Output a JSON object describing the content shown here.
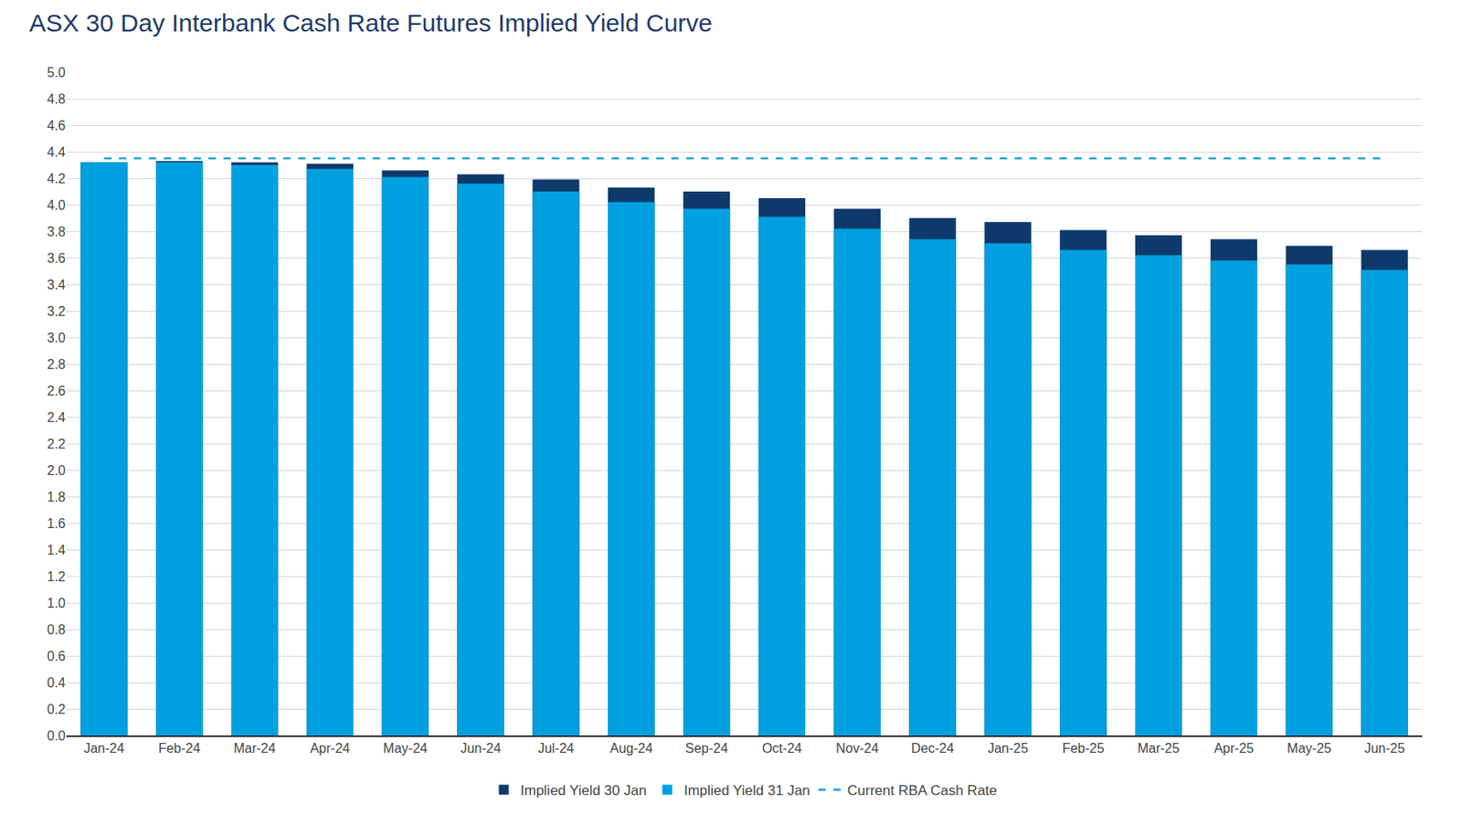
{
  "chart_data": {
    "type": "bar",
    "title": "ASX 30 Day Interbank Cash Rate Futures Implied Yield Curve",
    "categories": [
      "Jan-24",
      "Feb-24",
      "Mar-24",
      "Apr-24",
      "May-24",
      "Jun-24",
      "Jul-24",
      "Aug-24",
      "Sep-24",
      "Oct-24",
      "Nov-24",
      "Dec-24",
      "Jan-25",
      "Feb-25",
      "Mar-25",
      "Apr-25",
      "May-25",
      "Jun-25"
    ],
    "series": [
      {
        "name": "Implied Yield 30 Jan",
        "type": "bar",
        "color": "#0d3a6b",
        "values": [
          4.32,
          4.33,
          4.32,
          4.31,
          4.26,
          4.23,
          4.19,
          4.13,
          4.1,
          4.05,
          3.97,
          3.9,
          3.87,
          3.81,
          3.77,
          3.74,
          3.69,
          3.66
        ]
      },
      {
        "name": "Implied Yield 31 Jan",
        "type": "bar",
        "color": "#009fe0",
        "values": [
          4.32,
          4.32,
          4.3,
          4.27,
          4.21,
          4.16,
          4.1,
          4.02,
          3.97,
          3.91,
          3.82,
          3.74,
          3.71,
          3.66,
          3.62,
          3.58,
          3.55,
          3.51
        ]
      },
      {
        "name": "Current RBA Cash Rate",
        "type": "line",
        "color": "#1ba1e2",
        "line_style": "dashed",
        "values": [
          4.35,
          4.35,
          4.35,
          4.35,
          4.35,
          4.35,
          4.35,
          4.35,
          4.35,
          4.35,
          4.35,
          4.35,
          4.35,
          4.35,
          4.35,
          4.35,
          4.35,
          4.35
        ]
      }
    ],
    "ylim": [
      0,
      5
    ],
    "yticks": [
      {
        "value": 0,
        "label": "0.0"
      },
      0.2,
      0.4,
      0.6,
      0.8,
      {
        "value": 1,
        "label": "1.0"
      },
      1.2,
      1.4,
      1.6,
      1.8,
      {
        "value": 2,
        "label": "2.0"
      },
      2.2,
      2.4,
      2.6,
      2.8,
      {
        "value": 3,
        "label": "3.0"
      },
      3.2,
      3.4,
      3.6,
      3.8,
      {
        "value": 4,
        "label": "4.0"
      },
      4.2,
      4.4,
      4.6,
      4.8,
      {
        "value": 5,
        "label": "5.0"
      }
    ],
    "grid": true,
    "legend": "bottom"
  }
}
